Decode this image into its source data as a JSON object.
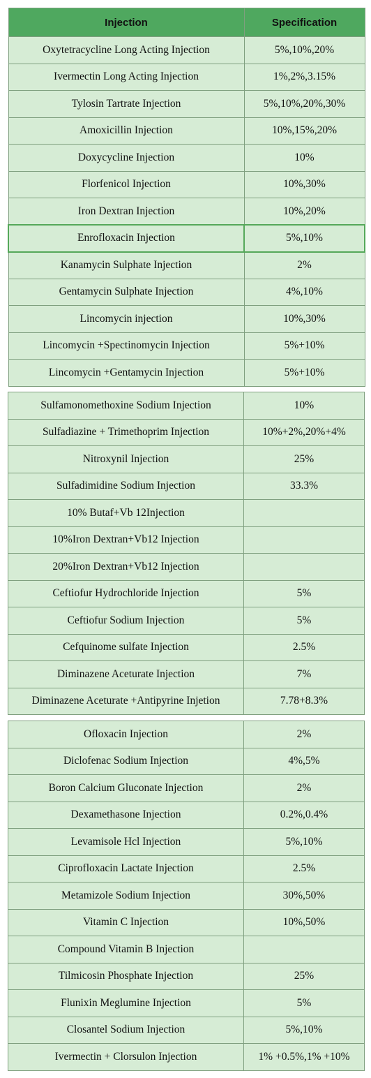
{
  "header": {
    "col1": "Injection",
    "col2": "Specification"
  },
  "group1": [
    {
      "name": "Oxytetracycline Long Acting Injection",
      "spec": "5%,10%,20%"
    },
    {
      "name": "Ivermectin Long Acting Injection",
      "spec": "1%,2%,3.15%"
    },
    {
      "name": "Tylosin Tartrate Injection",
      "spec": "5%,10%,20%,30%"
    },
    {
      "name": "Amoxicillin Injection",
      "spec": "10%,15%,20%"
    },
    {
      "name": "Doxycycline Injection",
      "spec": "10%"
    },
    {
      "name": "Florfenicol Injection",
      "spec": "10%,30%"
    },
    {
      "name": "Iron Dextran Injection",
      "spec": "10%,20%"
    },
    {
      "name": "Enrofloxacin Injection",
      "spec": "5%,10%"
    },
    {
      "name": "Kanamycin Sulphate Injection",
      "spec": "2%"
    },
    {
      "name": "Gentamycin Sulphate Injection",
      "spec": "4%,10%"
    },
    {
      "name": "Lincomycin injection",
      "spec": "10%,30%"
    },
    {
      "name": "Lincomycin +Spectinomycin Injection",
      "spec": "5%+10%"
    },
    {
      "name": "Lincomycin +Gentamycin Injection",
      "spec": "5%+10%"
    }
  ],
  "group2": [
    {
      "name": "Sulfamonomethoxine Sodium Injection",
      "spec": "10%"
    },
    {
      "name": "Sulfadiazine + Trimethoprim Injection",
      "spec": "10%+2%,20%+4%"
    },
    {
      "name": "Nitroxynil Injection",
      "spec": "25%"
    },
    {
      "name": "Sulfadimidine Sodium Injection",
      "spec": "33.3%"
    },
    {
      "name": "10% Butaf+Vb 12Injection",
      "spec": ""
    },
    {
      "name": "10%Iron Dextran+Vb12 Injection",
      "spec": ""
    },
    {
      "name": "20%Iron Dextran+Vb12 Injection",
      "spec": ""
    },
    {
      "name": "Ceftiofur Hydrochloride Injection",
      "spec": "5%"
    },
    {
      "name": "Ceftiofur Sodium  Injection",
      "spec": "5%"
    },
    {
      "name": "Cefquinome sulfate Injection",
      "spec": "2.5%"
    },
    {
      "name": "Diminazene Aceturate Injection",
      "spec": "7%"
    },
    {
      "name": "Diminazene Aceturate +Antipyrine Injetion",
      "spec": "7.78+8.3%"
    }
  ],
  "group3": [
    {
      "name": "Ofloxacin Injection",
      "spec": "2%"
    },
    {
      "name": "Diclofenac Sodium Injection",
      "spec": "4%,5%"
    },
    {
      "name": "Boron Calcium Gluconate Injection",
      "spec": "2%"
    },
    {
      "name": "Dexamethasone Injection",
      "spec": "0.2%,0.4%"
    },
    {
      "name": "Levamisole Hcl Injection",
      "spec": "5%,10%"
    },
    {
      "name": "Ciprofloxacin Lactate Injection",
      "spec": "2.5%"
    },
    {
      "name": "Metamizole Sodium Injection",
      "spec": "30%,50%"
    },
    {
      "name": "Vitamin C Injection",
      "spec": "10%,50%"
    },
    {
      "name": "Compound Vitamin B Injection",
      "spec": ""
    },
    {
      "name": "Tilmicosin Phosphate Injection",
      "spec": "25%"
    },
    {
      "name": "Flunixin Meglumine Injection",
      "spec": "5%"
    },
    {
      "name": "Closantel Sodium Injection",
      "spec": "5%,10%"
    },
    {
      "name": "Ivermectin + Clorsulon Injection",
      "spec": "1% +0.5%,1% +10%"
    }
  ]
}
